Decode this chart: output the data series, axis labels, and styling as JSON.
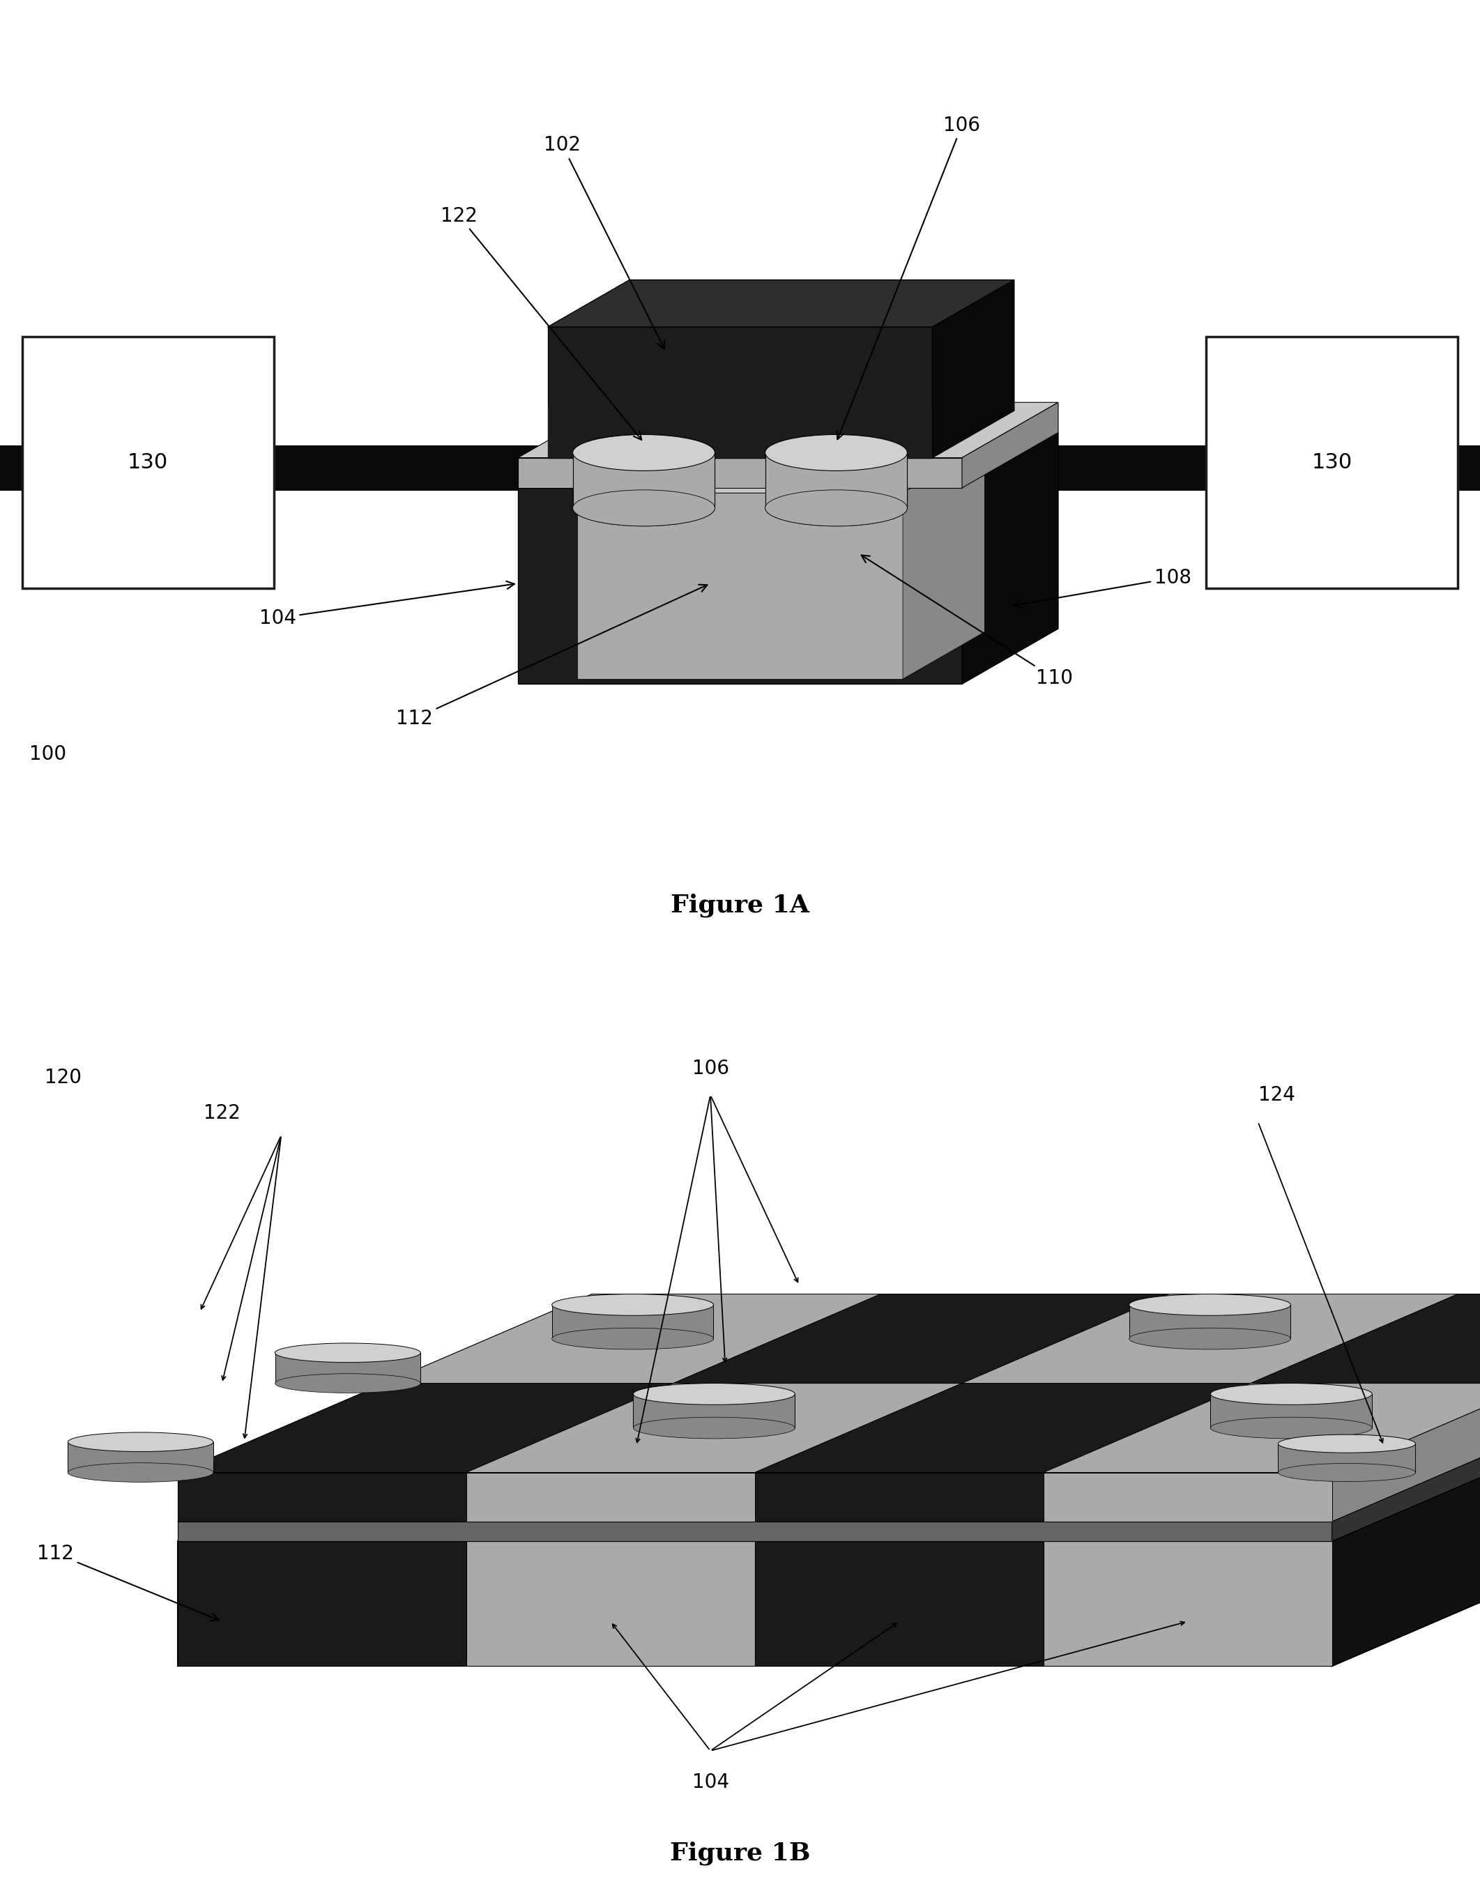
{
  "fig_width": 21.23,
  "fig_height": 27.23,
  "bg_color": "#ffffff",
  "dark": "#1c1c1c",
  "dark2": "#2e2e2e",
  "dark3": "#0a0a0a",
  "gray1": "#aaaaaa",
  "gray2": "#c8c8c8",
  "gray3": "#888888",
  "gray_light": "#d0d0d0",
  "wire_color": "#0a0a0a",
  "annotation_fs": 20,
  "fig_label_fs": 26
}
